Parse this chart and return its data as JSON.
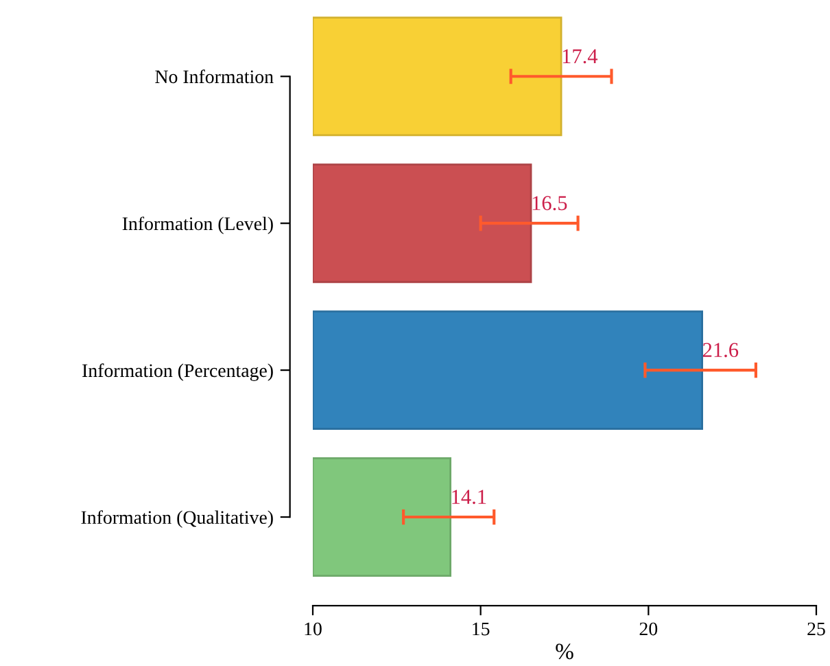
{
  "chart_data": {
    "type": "bar",
    "orientation": "horizontal",
    "xlabel": "%",
    "categories": [
      "No Information",
      "Information (Level)",
      "Information (Percentage)",
      "Information (Qualitative)"
    ],
    "values": [
      17.4,
      16.5,
      21.6,
      14.1
    ],
    "colors": [
      "#f8d035",
      "#cb4f52",
      "#3183bb",
      "#80c77c"
    ],
    "errors": [
      [
        15.9,
        18.9
      ],
      [
        15.0,
        17.9
      ],
      [
        19.9,
        23.2
      ],
      [
        12.7,
        15.4
      ]
    ],
    "data_labels": true,
    "xlim": [
      10,
      25
    ],
    "xticks": [
      10,
      15,
      20,
      25
    ],
    "grid": false,
    "legend": false
  }
}
